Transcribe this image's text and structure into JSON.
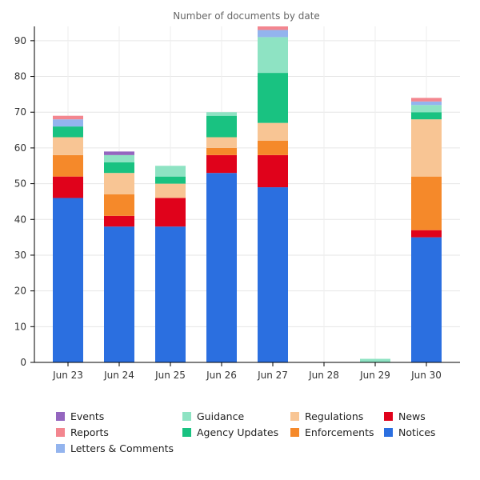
{
  "chart_data": {
    "type": "bar",
    "stacked": true,
    "title": "Number of documents by date",
    "xlabel": "",
    "ylabel": "",
    "ylim": [
      0,
      94
    ],
    "y_ticks": [
      0,
      10,
      20,
      30,
      40,
      50,
      60,
      70,
      80,
      90
    ],
    "grid": true,
    "legend_position": "bottom",
    "categories": [
      "Jun 23",
      "Jun 24",
      "Jun 25",
      "Jun 26",
      "Jun 27",
      "Jun 28",
      "Jun 29",
      "Jun 30"
    ],
    "series": [
      {
        "name": "Notices",
        "color": "#2b6fe0",
        "values": [
          46,
          38,
          38,
          53,
          49,
          0,
          0,
          35
        ]
      },
      {
        "name": "News",
        "color": "#e0021b",
        "values": [
          6,
          3,
          8,
          5,
          9,
          0,
          0,
          2
        ]
      },
      {
        "name": "Enforcements",
        "color": "#f5892a",
        "values": [
          6,
          6,
          0,
          2,
          4,
          0,
          0,
          15
        ]
      },
      {
        "name": "Regulations",
        "color": "#f8c594",
        "values": [
          5,
          6,
          4,
          3,
          5,
          0,
          0,
          16
        ]
      },
      {
        "name": "Agency Updates",
        "color": "#19c281",
        "values": [
          3,
          3,
          2,
          6,
          14,
          0,
          0,
          2
        ]
      },
      {
        "name": "Guidance",
        "color": "#8ee3c3",
        "values": [
          0,
          2,
          3,
          1,
          10,
          0,
          1,
          2
        ]
      },
      {
        "name": "Letters & Comments",
        "color": "#93b4ee",
        "values": [
          2,
          0,
          0,
          0,
          2,
          0,
          0,
          1
        ]
      },
      {
        "name": "Reports",
        "color": "#f3868f",
        "values": [
          1,
          0,
          0,
          0,
          1,
          0,
          0,
          1
        ]
      },
      {
        "name": "Events",
        "color": "#9466bf",
        "values": [
          0,
          1,
          0,
          0,
          0,
          0,
          0,
          0
        ]
      }
    ],
    "legend_columns": [
      [
        "Events",
        "Reports",
        "Letters & Comments"
      ],
      [
        "Guidance",
        "Agency Updates"
      ],
      [
        "Regulations",
        "Enforcements"
      ],
      [
        "News",
        "Notices"
      ]
    ]
  }
}
